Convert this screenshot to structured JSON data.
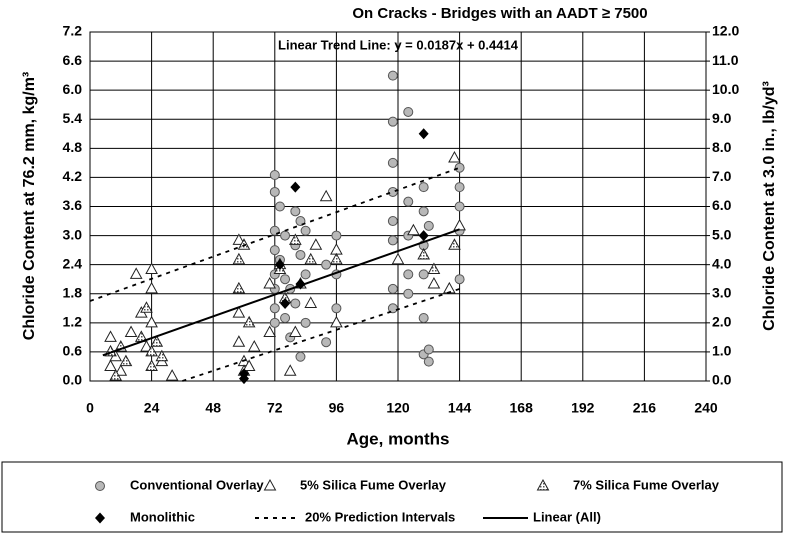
{
  "chart_data": {
    "type": "scatter",
    "title": "On Cracks - Bridges with an AADT ≥ 7500",
    "annotation": "Linear Trend Line:  y = 0.0187x + 0.4414",
    "xlabel": "Age, months",
    "ylabel": "Chloride Content at 76.2 mm, kg/m³",
    "y2label": "Chloride Content at 3.0 in., lb/yd³",
    "xlim": [
      0,
      240
    ],
    "xticks": [
      0,
      24,
      48,
      72,
      96,
      120,
      144,
      168,
      192,
      216,
      240
    ],
    "ylim": [
      0,
      7.2
    ],
    "yticks": [
      {
        "value": 0,
        "label": "0.0"
      },
      0.6,
      1.2,
      1.8,
      2.4,
      {
        "value": 3,
        "label": "3.0"
      },
      3.6,
      4.2,
      4.8,
      5.4,
      {
        "value": 6,
        "label": "6.0"
      },
      6.6,
      7.2
    ],
    "y2lim": [
      0,
      12
    ],
    "y2ticks": [
      {
        "value": 0,
        "label": "0.0"
      },
      {
        "value": 1,
        "label": "1.0"
      },
      {
        "value": 2,
        "label": "2.0"
      },
      {
        "value": 3,
        "label": "3.0"
      },
      {
        "value": 4,
        "label": "4.0"
      },
      {
        "value": 5,
        "label": "5.0"
      },
      {
        "value": 6,
        "label": "6.0"
      },
      {
        "value": 7,
        "label": "7.0"
      },
      {
        "value": 8,
        "label": "8.0"
      },
      {
        "value": 9,
        "label": "9.0"
      },
      {
        "value": 10,
        "label": "10.0"
      },
      {
        "value": 11,
        "label": "11.0"
      },
      {
        "value": 12,
        "label": "12.0"
      }
    ],
    "grid": true,
    "series": [
      {
        "name": "Conventional Overlay",
        "marker": "circle",
        "color": "#b8b8b8",
        "x": [
          72,
          72,
          72,
          72,
          72,
          72,
          72,
          72,
          74,
          74,
          76,
          76,
          76,
          78,
          78,
          80,
          80,
          80,
          82,
          82,
          82,
          84,
          84,
          84,
          92,
          92,
          96,
          96,
          96,
          118,
          118,
          118,
          118,
          118,
          118,
          118,
          118,
          124,
          124,
          124,
          124,
          124,
          130,
          130,
          130,
          130,
          130,
          130,
          132,
          132,
          132,
          144,
          144,
          144,
          144,
          144
        ],
        "values": [
          4.25,
          3.9,
          3.1,
          2.7,
          2.2,
          1.9,
          1.5,
          1.2,
          3.6,
          2.5,
          3.0,
          2.1,
          1.3,
          0.9,
          1.9,
          3.5,
          2.8,
          1.6,
          3.3,
          2.6,
          0.5,
          3.1,
          2.2,
          1.2,
          2.4,
          0.8,
          3.0,
          2.2,
          1.5,
          6.3,
          5.35,
          4.5,
          3.9,
          3.3,
          2.9,
          1.9,
          1.5,
          5.55,
          3.7,
          3.0,
          2.2,
          1.8,
          4.0,
          3.5,
          2.8,
          2.2,
          1.3,
          0.55,
          3.2,
          0.4,
          0.65,
          4.4,
          4.0,
          3.6,
          3.1,
          2.1
        ]
      },
      {
        "name": "5% Silica Fume Overlay",
        "marker": "triangle",
        "color": "#ffffff",
        "x": [
          8,
          8,
          10,
          12,
          16,
          18,
          20,
          22,
          24,
          24,
          24,
          28,
          32,
          58,
          58,
          58,
          60,
          60,
          62,
          64,
          70,
          70,
          74,
          78,
          80,
          86,
          88,
          92,
          96,
          96,
          120,
          126,
          134,
          140,
          142,
          144
        ],
        "values": [
          0.9,
          0.3,
          0.5,
          0.2,
          1.0,
          2.2,
          1.4,
          0.7,
          2.3,
          1.9,
          1.2,
          0.4,
          0.1,
          2.9,
          1.4,
          0.8,
          0.4,
          0.2,
          0.3,
          0.7,
          2.0,
          1.0,
          2.4,
          0.2,
          1.0,
          1.6,
          2.8,
          3.8,
          2.7,
          1.2,
          2.5,
          3.1,
          2.0,
          1.9,
          4.6,
          3.2
        ]
      },
      {
        "name": "7% Silica Fume Overlay",
        "marker": "triangle-hatched",
        "color": "#9a9a9a",
        "x": [
          8,
          10,
          12,
          14,
          20,
          22,
          24,
          24,
          26,
          28,
          58,
          58,
          60,
          62,
          74,
          76,
          80,
          82,
          86,
          96,
          130,
          134,
          142
        ],
        "values": [
          0.6,
          0.1,
          0.7,
          0.4,
          0.9,
          1.5,
          0.3,
          0.6,
          0.8,
          0.5,
          2.5,
          1.9,
          2.8,
          1.2,
          2.3,
          1.7,
          2.9,
          2.0,
          2.5,
          2.5,
          2.6,
          2.3,
          2.8
        ]
      },
      {
        "name": "Monolithic",
        "marker": "diamond",
        "color": "#000000",
        "x": [
          60,
          60,
          74,
          76,
          80,
          82,
          130,
          130
        ],
        "values": [
          0.15,
          0.05,
          2.4,
          1.6,
          4.0,
          2.0,
          5.1,
          3.0
        ]
      },
      {
        "name": "20% Prediction Intervals",
        "line": "dashed",
        "color": "#000000",
        "x": [
          0,
          144,
          null,
          36,
          144
        ],
        "values": [
          1.65,
          4.4,
          null,
          0,
          1.9
        ]
      },
      {
        "name": "Linear (All)",
        "line": "solid",
        "color": "#000000",
        "x": [
          5,
          144
        ],
        "values": [
          0.53,
          3.13
        ]
      }
    ]
  }
}
